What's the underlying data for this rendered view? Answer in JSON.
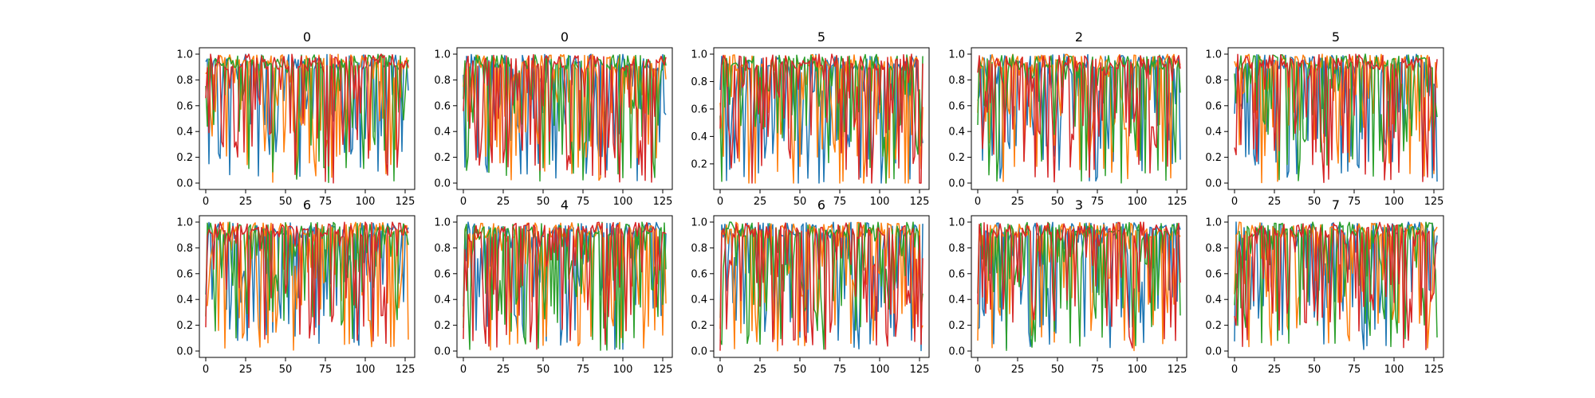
{
  "figure": {
    "background": "#ffffff"
  },
  "series_colors": [
    "#1f77b4",
    "#ff7f0e",
    "#2ca02c",
    "#d62728"
  ],
  "chart_data": [
    {
      "type": "line",
      "title": "0",
      "xlim": [
        0,
        127
      ],
      "ylim": [
        0.0,
        1.0
      ],
      "xticks": [
        0,
        25,
        50,
        75,
        100,
        125
      ],
      "xtick_labels": [
        "0",
        "25",
        "50",
        "75",
        "100",
        "125"
      ],
      "yticks": [
        0.0,
        0.2,
        0.4,
        0.6,
        0.8,
        1.0
      ],
      "ytick_labels": [
        "0.0",
        "0.2",
        "0.4",
        "0.6",
        "0.8",
        "1.0"
      ],
      "grid": false,
      "n_points": 128,
      "series_count": 4
    },
    {
      "type": "line",
      "title": "0",
      "xlim": [
        0,
        127
      ],
      "ylim": [
        0.0,
        1.0
      ],
      "xticks": [
        0,
        25,
        50,
        75,
        100,
        125
      ],
      "xtick_labels": [
        "0",
        "25",
        "50",
        "75",
        "100",
        "125"
      ],
      "yticks": [
        0.0,
        0.2,
        0.4,
        0.6,
        0.8,
        1.0
      ],
      "ytick_labels": [
        "0.0",
        "0.2",
        "0.4",
        "0.6",
        "0.8",
        "1.0"
      ],
      "grid": false,
      "n_points": 128,
      "series_count": 4
    },
    {
      "type": "line",
      "title": "5",
      "xlim": [
        0,
        127
      ],
      "ylim": [
        0.06,
        1.0
      ],
      "xticks": [
        0,
        25,
        50,
        75,
        100,
        125
      ],
      "xtick_labels": [
        "0",
        "25",
        "50",
        "75",
        "100",
        "125"
      ],
      "yticks": [
        0.2,
        0.4,
        0.6,
        0.8,
        1.0
      ],
      "ytick_labels": [
        "0.2",
        "0.4",
        "0.6",
        "0.8",
        "1.0"
      ],
      "grid": false,
      "n_points": 128,
      "series_count": 4
    },
    {
      "type": "line",
      "title": "2",
      "xlim": [
        0,
        127
      ],
      "ylim": [
        0.0,
        1.0
      ],
      "xticks": [
        0,
        25,
        50,
        75,
        100,
        125
      ],
      "xtick_labels": [
        "0",
        "25",
        "50",
        "75",
        "100",
        "125"
      ],
      "yticks": [
        0.0,
        0.2,
        0.4,
        0.6,
        0.8,
        1.0
      ],
      "ytick_labels": [
        "0.0",
        "0.2",
        "0.4",
        "0.6",
        "0.8",
        "1.0"
      ],
      "grid": false,
      "n_points": 128,
      "series_count": 4
    },
    {
      "type": "line",
      "title": "5",
      "xlim": [
        0,
        127
      ],
      "ylim": [
        0.0,
        1.0
      ],
      "xticks": [
        0,
        25,
        50,
        75,
        100,
        125
      ],
      "xtick_labels": [
        "0",
        "25",
        "50",
        "75",
        "100",
        "125"
      ],
      "yticks": [
        0.0,
        0.2,
        0.4,
        0.6,
        0.8,
        1.0
      ],
      "ytick_labels": [
        "0.0",
        "0.2",
        "0.4",
        "0.6",
        "0.8",
        "1.0"
      ],
      "grid": false,
      "n_points": 128,
      "series_count": 4
    },
    {
      "type": "line",
      "title": "6",
      "xlim": [
        0,
        127
      ],
      "ylim": [
        0.0,
        1.0
      ],
      "xticks": [
        0,
        25,
        50,
        75,
        100,
        125
      ],
      "xtick_labels": [
        "0",
        "25",
        "50",
        "75",
        "100",
        "125"
      ],
      "yticks": [
        0.0,
        0.2,
        0.4,
        0.6,
        0.8,
        1.0
      ],
      "ytick_labels": [
        "0.0",
        "0.2",
        "0.4",
        "0.6",
        "0.8",
        "1.0"
      ],
      "grid": false,
      "n_points": 128,
      "series_count": 4
    },
    {
      "type": "line",
      "title": "4",
      "xlim": [
        0,
        127
      ],
      "ylim": [
        0.0,
        1.0
      ],
      "xticks": [
        0,
        25,
        50,
        75,
        100,
        125
      ],
      "xtick_labels": [
        "0",
        "25",
        "50",
        "75",
        "100",
        "125"
      ],
      "yticks": [
        0.0,
        0.2,
        0.4,
        0.6,
        0.8,
        1.0
      ],
      "ytick_labels": [
        "0.0",
        "0.2",
        "0.4",
        "0.6",
        "0.8",
        "1.0"
      ],
      "grid": false,
      "n_points": 128,
      "series_count": 4
    },
    {
      "type": "line",
      "title": "6",
      "xlim": [
        0,
        127
      ],
      "ylim": [
        0.0,
        1.0
      ],
      "xticks": [
        0,
        25,
        50,
        75,
        100,
        125
      ],
      "xtick_labels": [
        "0",
        "25",
        "50",
        "75",
        "100",
        "125"
      ],
      "yticks": [
        0.0,
        0.2,
        0.4,
        0.6,
        0.8,
        1.0
      ],
      "ytick_labels": [
        "0.0",
        "0.2",
        "0.4",
        "0.6",
        "0.8",
        "1.0"
      ],
      "grid": false,
      "n_points": 128,
      "series_count": 4
    },
    {
      "type": "line",
      "title": "3",
      "xlim": [
        0,
        127
      ],
      "ylim": [
        0.0,
        1.0
      ],
      "xticks": [
        0,
        25,
        50,
        75,
        100,
        125
      ],
      "xtick_labels": [
        "0",
        "25",
        "50",
        "75",
        "100",
        "125"
      ],
      "yticks": [
        0.0,
        0.2,
        0.4,
        0.6,
        0.8,
        1.0
      ],
      "ytick_labels": [
        "0.0",
        "0.2",
        "0.4",
        "0.6",
        "0.8",
        "1.0"
      ],
      "grid": false,
      "n_points": 128,
      "series_count": 4
    },
    {
      "type": "line",
      "title": "7",
      "xlim": [
        0,
        127
      ],
      "ylim": [
        0.0,
        1.0
      ],
      "xticks": [
        0,
        25,
        50,
        75,
        100,
        125
      ],
      "xtick_labels": [
        "0",
        "25",
        "50",
        "75",
        "100",
        "125"
      ],
      "yticks": [
        0.0,
        0.2,
        0.4,
        0.6,
        0.8,
        1.0
      ],
      "ytick_labels": [
        "0.0",
        "0.2",
        "0.4",
        "0.6",
        "0.8",
        "1.0"
      ],
      "grid": false,
      "n_points": 128,
      "series_count": 4
    }
  ]
}
